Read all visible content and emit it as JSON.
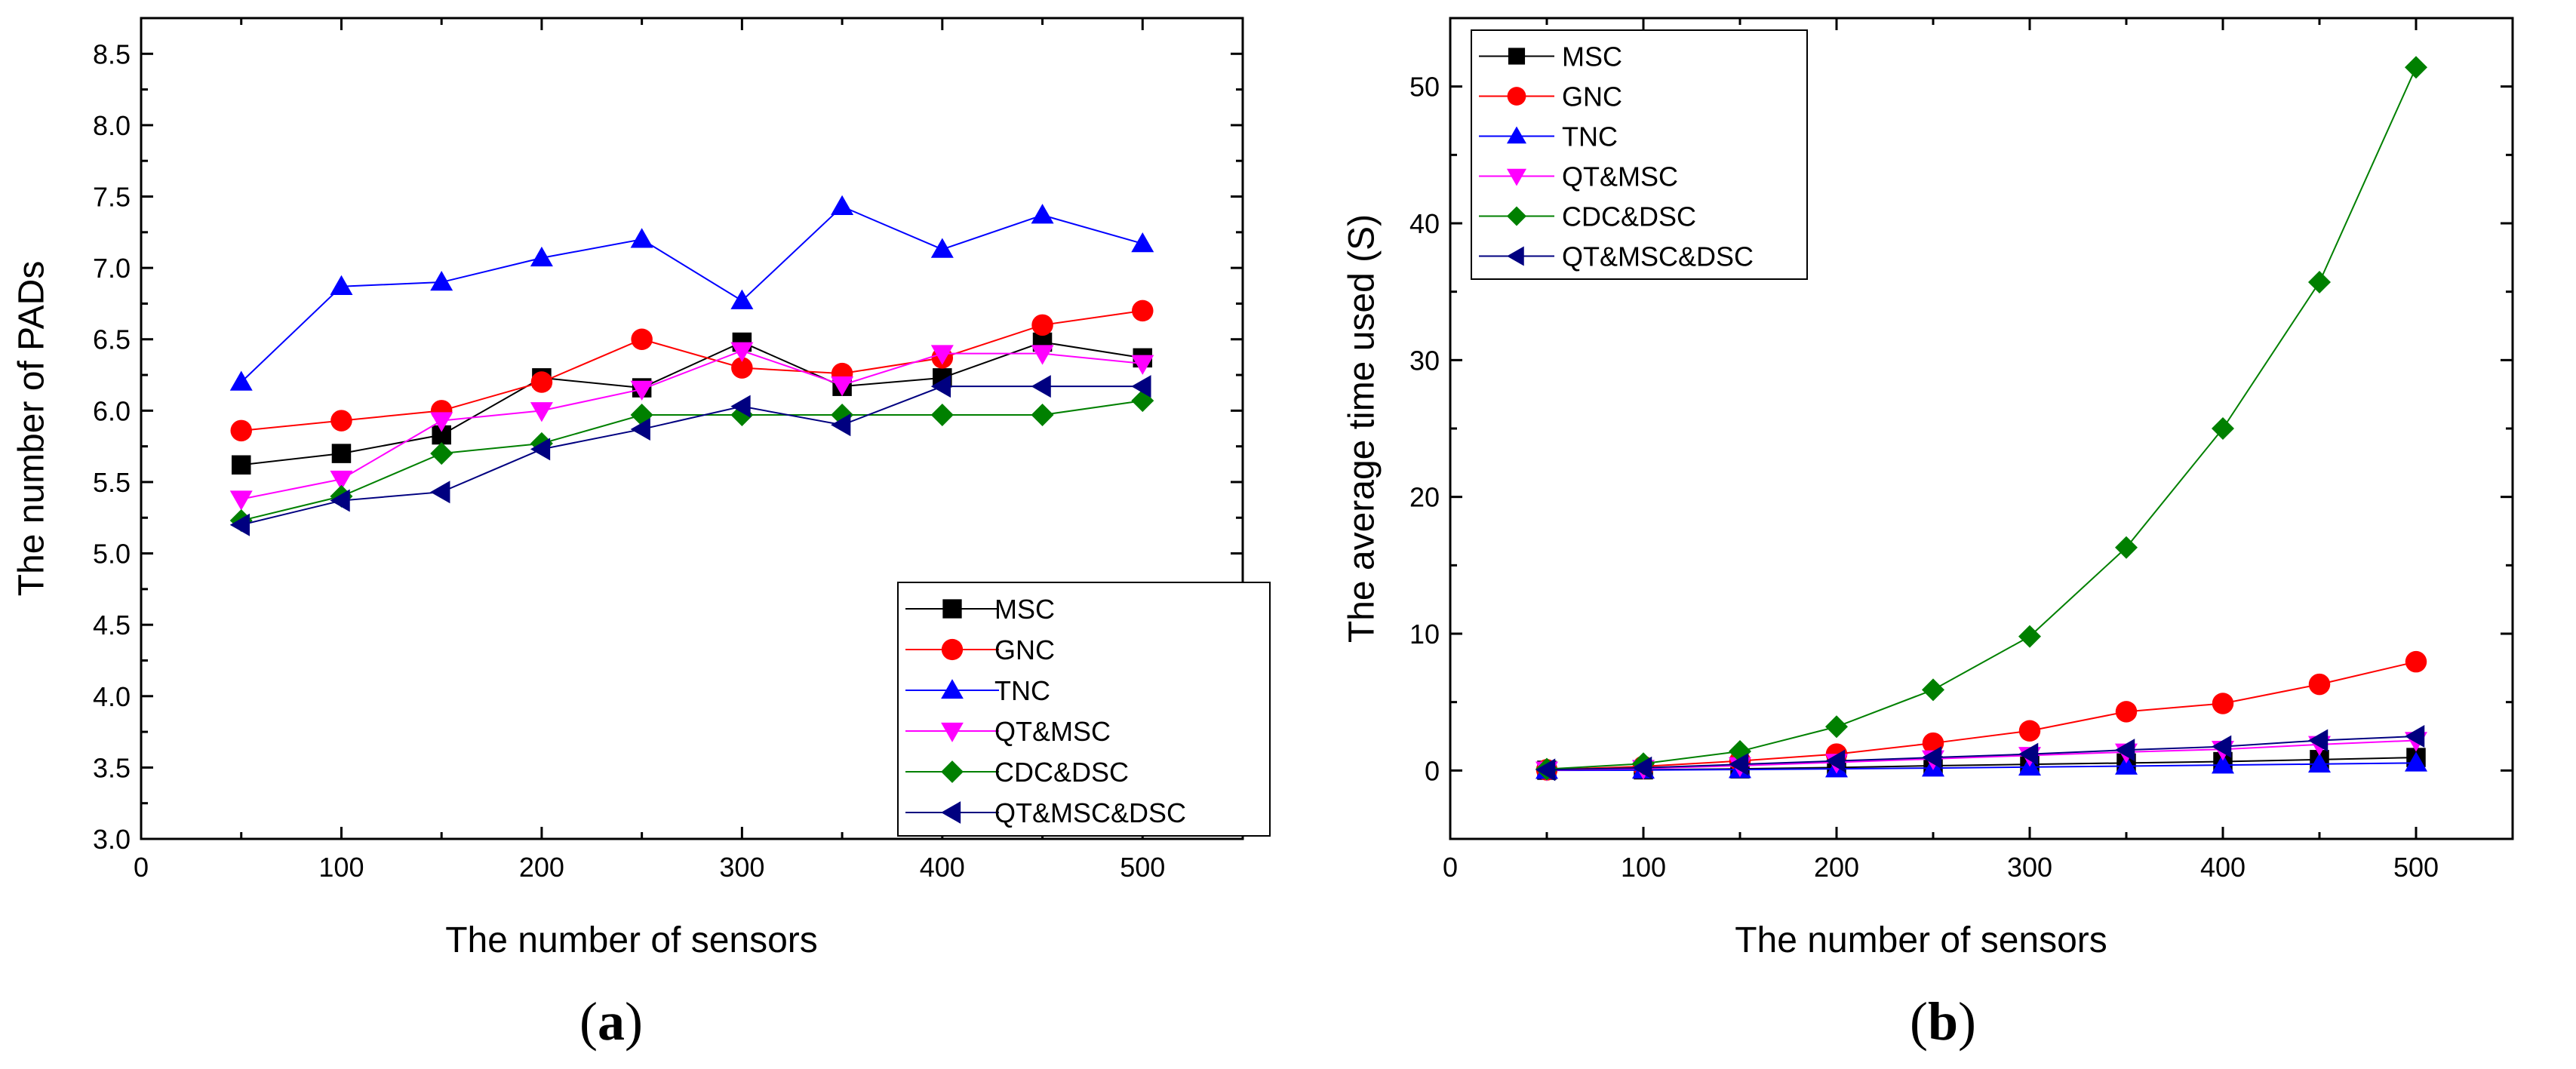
{
  "chart_data": [
    {
      "type": "line",
      "panel_label": {
        "open": "(",
        "letter": "a",
        "close": ")"
      },
      "xlabel": "The number of sensors",
      "ylabel": "The number of PADs",
      "xlim": [
        0,
        550
      ],
      "ylim": [
        3.0,
        8.75
      ],
      "xticks": [
        0,
        100,
        200,
        300,
        400,
        500
      ],
      "yticks": [
        3.0,
        3.5,
        4.0,
        4.5,
        5.0,
        5.5,
        6.0,
        6.5,
        7.0,
        7.5,
        8.0,
        8.5
      ],
      "tick_decimals": 1,
      "legend_position": "bottom-right",
      "x": [
        50,
        100,
        150,
        200,
        250,
        300,
        350,
        400,
        450,
        500
      ],
      "series": [
        {
          "name": "MSC",
          "color": "#000000",
          "marker": "square",
          "values": [
            5.62,
            5.7,
            5.83,
            6.23,
            6.16,
            6.48,
            6.17,
            6.23,
            6.48,
            6.37
          ]
        },
        {
          "name": "GNC",
          "color": "#ff0000",
          "marker": "circle",
          "values": [
            5.86,
            5.93,
            6.0,
            6.2,
            6.5,
            6.3,
            6.26,
            6.37,
            6.6,
            6.7
          ]
        },
        {
          "name": "TNC",
          "color": "#0000ff",
          "marker": "triangle-up",
          "values": [
            6.2,
            6.87,
            6.9,
            7.07,
            7.2,
            6.77,
            7.43,
            7.13,
            7.37,
            7.17
          ]
        },
        {
          "name": "QT&MSC",
          "color": "#ff00ff",
          "marker": "triangle-down",
          "values": [
            5.38,
            5.52,
            5.93,
            6.0,
            6.15,
            6.42,
            6.18,
            6.4,
            6.4,
            6.33
          ]
        },
        {
          "name": "CDC&DSC",
          "color": "#008000",
          "marker": "diamond",
          "values": [
            5.23,
            5.4,
            5.7,
            5.77,
            5.97,
            5.97,
            5.97,
            5.97,
            5.97,
            6.07
          ]
        },
        {
          "name": "QT&MSC&DSC",
          "color": "#000080",
          "marker": "triangle-left",
          "values": [
            5.2,
            5.37,
            5.43,
            5.73,
            5.87,
            6.03,
            5.9,
            6.17,
            6.17,
            6.17
          ]
        }
      ]
    },
    {
      "type": "line",
      "panel_label": {
        "open": "(",
        "letter": "b",
        "close": ")"
      },
      "xlabel": "The number of sensors",
      "ylabel": "The average time used (S)",
      "xlim": [
        0,
        550
      ],
      "ylim": [
        -5,
        55
      ],
      "xticks": [
        0,
        100,
        200,
        300,
        400,
        500
      ],
      "yticks": [
        0,
        10,
        20,
        30,
        40,
        50
      ],
      "tick_decimals": 0,
      "legend_position": "top-left",
      "x": [
        50,
        100,
        150,
        200,
        250,
        300,
        350,
        400,
        450,
        500
      ],
      "series": [
        {
          "name": "MSC",
          "color": "#000000",
          "marker": "square",
          "values": [
            0.02,
            0.05,
            0.12,
            0.22,
            0.35,
            0.45,
            0.55,
            0.65,
            0.8,
            0.95
          ]
        },
        {
          "name": "GNC",
          "color": "#ff0000",
          "marker": "circle",
          "values": [
            0.05,
            0.3,
            0.7,
            1.2,
            2.0,
            2.9,
            4.3,
            4.9,
            6.3,
            7.95
          ]
        },
        {
          "name": "TNC",
          "color": "#0000ff",
          "marker": "triangle-up",
          "values": [
            0.01,
            0.03,
            0.07,
            0.12,
            0.18,
            0.25,
            0.32,
            0.4,
            0.47,
            0.55
          ]
        },
        {
          "name": "QT&MSC",
          "color": "#ff00ff",
          "marker": "triangle-down",
          "values": [
            0.03,
            0.15,
            0.35,
            0.6,
            0.85,
            1.1,
            1.35,
            1.55,
            1.9,
            2.2
          ]
        },
        {
          "name": "CDC&DSC",
          "color": "#008000",
          "marker": "diamond",
          "values": [
            0.1,
            0.5,
            1.4,
            3.2,
            5.9,
            9.8,
            16.3,
            25.0,
            35.7,
            51.4
          ]
        },
        {
          "name": "QT&MSC&DSC",
          "color": "#000080",
          "marker": "triangle-left",
          "values": [
            0.05,
            0.2,
            0.45,
            0.7,
            0.95,
            1.2,
            1.5,
            1.75,
            2.2,
            2.5
          ]
        }
      ]
    }
  ]
}
